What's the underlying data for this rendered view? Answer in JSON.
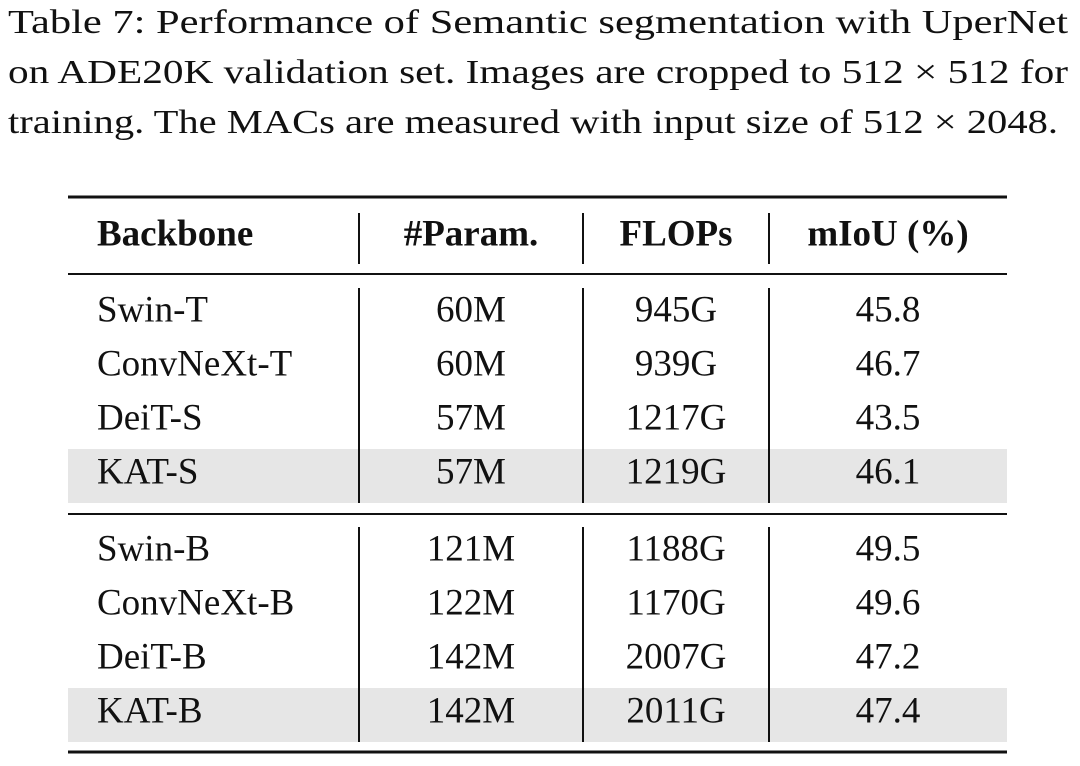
{
  "caption_lines": [
    "Table 7: Performance of Semantic segmentation with UperNet",
    "on ADE20K validation set. Images are cropped to 512 × 512 for",
    "training. The MACs are measured with input size of 512 × 2048."
  ],
  "table": {
    "header": [
      "Backbone",
      "#Param.",
      "FLOPs",
      "mIoU (%)"
    ],
    "groups": [
      [
        {
          "cells": [
            "Swin-T",
            "60M",
            "945G",
            "45.8"
          ],
          "highlight": false
        },
        {
          "cells": [
            "ConvNeXt-T",
            "60M",
            "939G",
            "46.7"
          ],
          "highlight": false
        },
        {
          "cells": [
            "DeiT-S",
            "57M",
            "1217G",
            "43.5"
          ],
          "highlight": false
        },
        {
          "cells": [
            "KAT-S",
            "57M",
            "1219G",
            "46.1"
          ],
          "highlight": true
        }
      ],
      [
        {
          "cells": [
            "Swin-B",
            "121M",
            "1188G",
            "49.5"
          ],
          "highlight": false
        },
        {
          "cells": [
            "ConvNeXt-B",
            "122M",
            "1170G",
            "49.6"
          ],
          "highlight": false
        },
        {
          "cells": [
            "DeiT-B",
            "142M",
            "2007G",
            "47.2"
          ],
          "highlight": false
        },
        {
          "cells": [
            "KAT-B",
            "142M",
            "2011G",
            "47.4"
          ],
          "highlight": true
        }
      ]
    ]
  }
}
